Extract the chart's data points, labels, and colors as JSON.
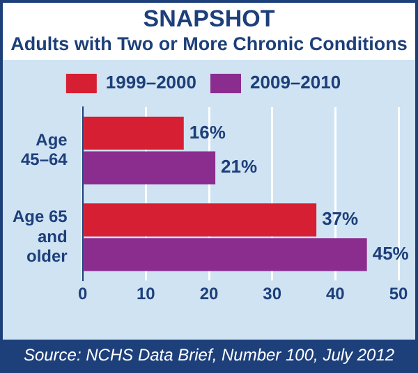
{
  "chart_data": {
    "type": "bar",
    "orientation": "horizontal",
    "title": "SNAPSHOT",
    "subtitle": "Adults with Two or More Chronic Conditions",
    "categories": [
      "Age 45–64",
      "Age 65 and older"
    ],
    "series": [
      {
        "name": "1999–2000",
        "color": "#d71f33",
        "values": [
          16,
          37
        ],
        "value_labels": [
          "16%",
          "37%"
        ]
      },
      {
        "name": "2009–2010",
        "color": "#8b2c8f",
        "values": [
          21,
          45
        ],
        "value_labels": [
          "21%",
          "45%"
        ]
      }
    ],
    "xlim": [
      0,
      50
    ],
    "xticks": [
      0,
      10,
      20,
      30,
      40,
      50
    ],
    "grid": "x",
    "legend": "top",
    "annotations": [
      "Source: NCHS Data Brief, Number 100, July 2012"
    ]
  }
}
